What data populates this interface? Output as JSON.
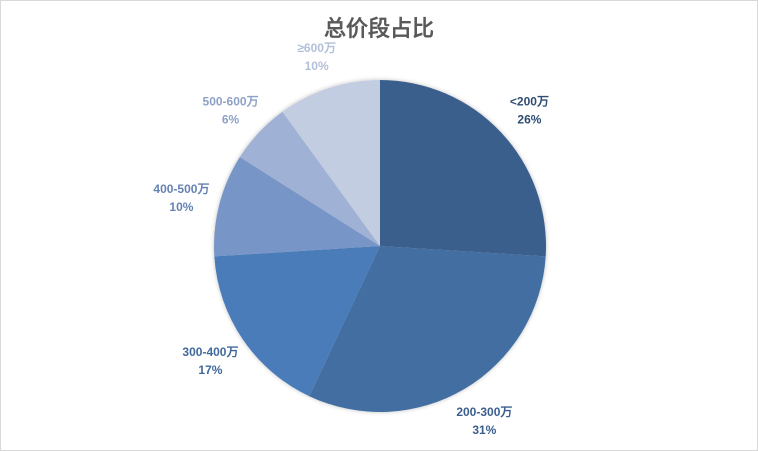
{
  "chart_data": {
    "type": "pie",
    "title": "总价段占比",
    "categories": [
      "<200万",
      "200-300万",
      "300-400万",
      "400-500万",
      "500-600万",
      "≥600万"
    ],
    "values": [
      26,
      31,
      17,
      10,
      6,
      10
    ],
    "labels": [
      "26%",
      "31%",
      "17%",
      "10%",
      "6%",
      "10%"
    ],
    "colors": [
      "#3a5e8c",
      "#426ea2",
      "#4a7cb8",
      "#7895c7",
      "#9fb2d5",
      "#c3cde2"
    ],
    "label_colors": [
      "#2f4d73",
      "#3a5f8e",
      "#40699c",
      "#6582b5",
      "#8ea2c6",
      "#b3bfd8"
    ],
    "start": "top",
    "direction": "clockwise"
  }
}
